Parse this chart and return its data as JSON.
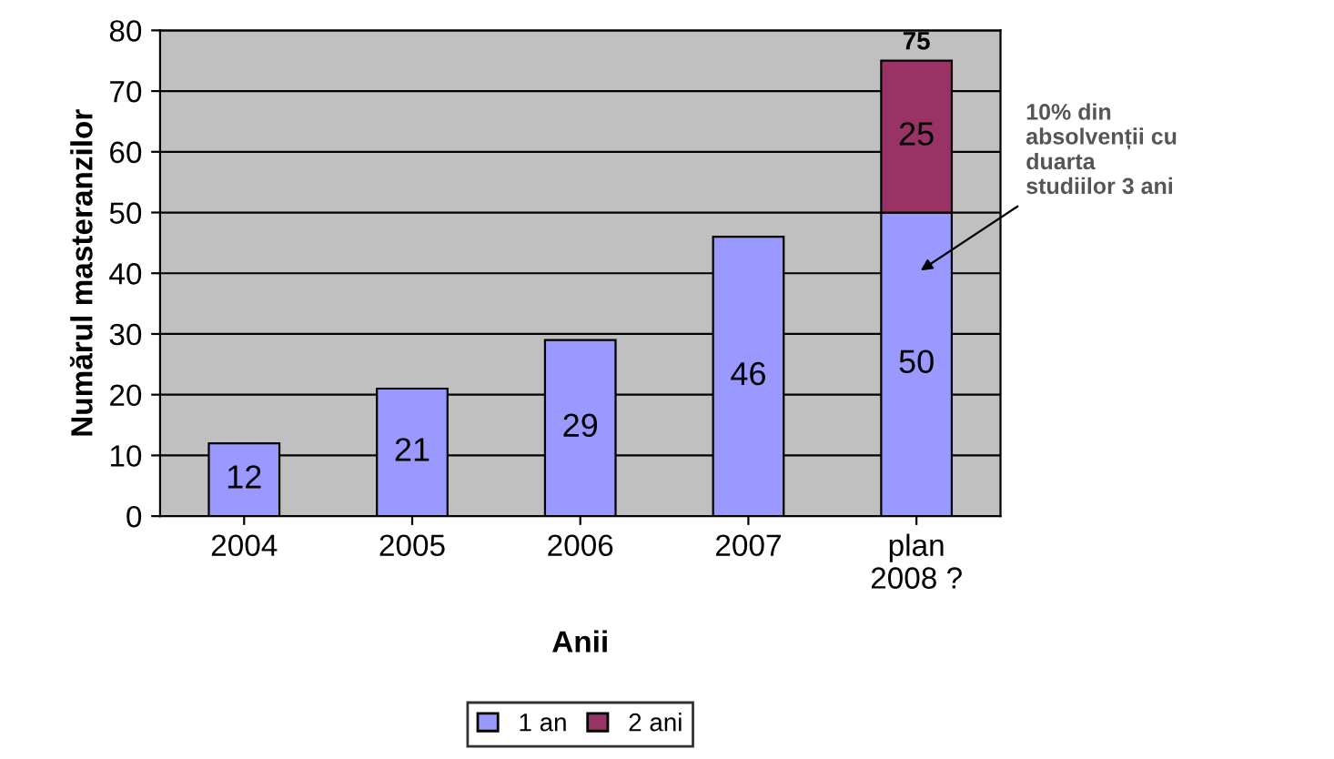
{
  "chart_data": {
    "type": "bar",
    "stacked": true,
    "xlabel": "Anii",
    "ylabel": "Numărul masteranzilor",
    "categories": [
      "2004",
      "2005",
      "2006",
      "2007",
      "plan\n2008 ?"
    ],
    "series": [
      {
        "name": "1 an",
        "color": "#9999ff",
        "values": [
          12,
          21,
          29,
          46,
          50
        ]
      },
      {
        "name": "2 ani",
        "color": "#993366",
        "values": [
          null,
          null,
          null,
          null,
          25
        ]
      }
    ],
    "totals": [
      null,
      null,
      null,
      null,
      "75"
    ],
    "data_labels": true,
    "ylim": [
      0,
      80
    ],
    "yticks": [
      0,
      10,
      20,
      30,
      40,
      50,
      60,
      70,
      80
    ],
    "grid": "y",
    "legend": "bottom",
    "annotations": [
      "10% din\nabsolvenții cu\nduarta\nstudiilor 3 ani"
    ]
  }
}
